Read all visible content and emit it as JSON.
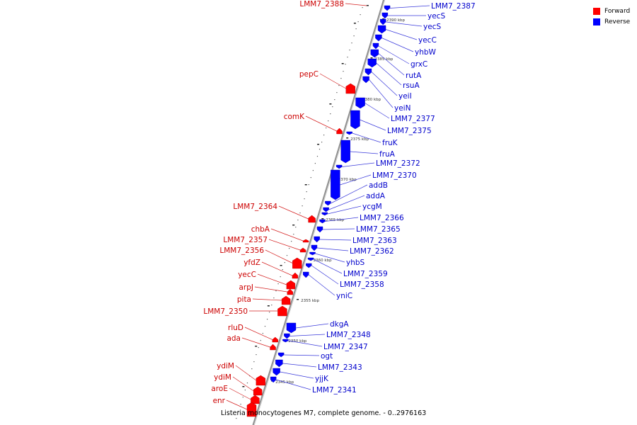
{
  "legend": [
    {
      "label": "Forward",
      "color": "#ff0000"
    },
    {
      "label": "Reverse",
      "color": "#0000ff"
    }
  ],
  "caption": "Listeria monocytogenes M7, complete genome. - 0..2976163",
  "colors": {
    "forward": "#ff0000",
    "reverse": "#0000ff",
    "forward_text": "#cc0000",
    "reverse_text": "#0000cc",
    "backbone": "#909090"
  },
  "kbp_ticks": [
    "2390 kbp",
    "2385 kbp",
    "2380 kbp",
    "2375 kbp",
    "2370 kbp",
    "2365 kbp",
    "2360 kbp",
    "2355 kbp",
    "2350 kbp",
    "2345 kbp"
  ],
  "forward_genes": [
    "LMM7_2388",
    "pepC",
    "comK",
    "LMM7_2364",
    "chbA",
    "LMM7_2357",
    "LMM7_2356",
    "yfdZ",
    "yecC",
    "arpJ",
    "pita",
    "LMM7_2350",
    "rluD",
    "ada",
    "ydiM",
    "ydiM",
    "aroE",
    "enr"
  ],
  "reverse_genes": [
    "LMM7_2387",
    "yecS",
    "yecS",
    "yecC",
    "yhbW",
    "grxC",
    "rutA",
    "rsuA",
    "yeiI",
    "yeiN",
    "LMM7_2377",
    "LMM7_2375",
    "fruK",
    "fruA",
    "LMM7_2372",
    "LMM7_2370",
    "addB",
    "addA",
    "ycgM",
    "LMM7_2366",
    "LMM7_2365",
    "LMM7_2363",
    "LMM7_2362",
    "yhbS",
    "LMM7_2359",
    "LMM7_2358",
    "yniC",
    "dkgA",
    "LMM7_2348",
    "LMM7_2347",
    "ogt",
    "LMM7_2343",
    "yjjK",
    "LMM7_2341"
  ]
}
